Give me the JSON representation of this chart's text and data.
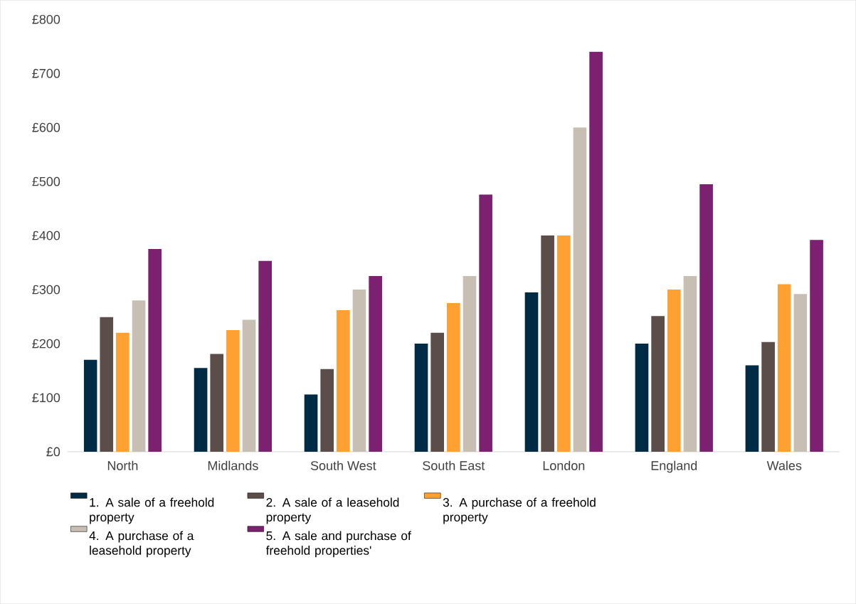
{
  "chart_data": {
    "type": "bar",
    "categories": [
      "North",
      "Midlands",
      "South West",
      "South East",
      "London",
      "England",
      "Wales"
    ],
    "series": [
      {
        "name": "1. A sale of a freehold property",
        "color": "#002b45",
        "values": [
          170,
          155,
          106,
          200,
          295,
          200,
          160
        ]
      },
      {
        "name": "2. A sale of a leasehold property",
        "color": "#5b4d49",
        "values": [
          249,
          181,
          153,
          220,
          400,
          251,
          203
        ]
      },
      {
        "name": "3. A purchase of a freehold property",
        "color": "#ffa033",
        "values": [
          220,
          225,
          262,
          275,
          400,
          300,
          310
        ]
      },
      {
        "name": "4. A purchase of a leasehold property",
        "color": "#c8bfb4",
        "values": [
          280,
          244,
          300,
          325,
          600,
          325,
          292
        ]
      },
      {
        "name": "5. A sale and purchase of freehold properties'",
        "color": "#7b2170",
        "values": [
          375,
          353,
          325,
          476,
          740,
          495,
          392
        ]
      }
    ],
    "ylim": [
      0,
      800
    ],
    "yticks": [
      {
        "value": 0,
        "label": "£0"
      },
      {
        "value": 100,
        "label": "£100"
      },
      {
        "value": 200,
        "label": "£200"
      },
      {
        "value": 300,
        "label": "£300"
      },
      {
        "value": 400,
        "label": "£400"
      },
      {
        "value": 500,
        "label": "£500"
      },
      {
        "value": 600,
        "label": "£600"
      },
      {
        "value": 700,
        "label": "£700"
      },
      {
        "value": 800,
        "label": "£800"
      }
    ],
    "grid": false,
    "legend": "bottom"
  }
}
